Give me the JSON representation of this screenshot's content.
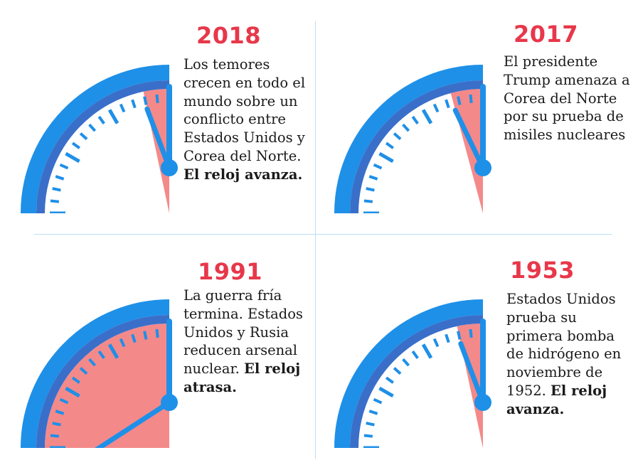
{
  "panels": [
    {
      "id": "p2018",
      "year": "2018",
      "text": "Los temores crecen en todo el mundo sobre un conflicto entre Estados Unidos y Corea del Norte. ",
      "bold": "El reloj avanza.",
      "minutes_to_midnight": 2
    },
    {
      "id": "p2017",
      "year": "2017",
      "text": "El presidente Trump amenaza a Corea del Norte por su prueba de misiles nucleares",
      "bold": "",
      "minutes_to_midnight": 2.5
    },
    {
      "id": "p1991",
      "year": "1991",
      "text": "La guerra fría termina. Estados Unidos y Rusia reducen arsenal nuclear. ",
      "bold": "El reloj atrasa.",
      "minutes_to_midnight": 17
    },
    {
      "id": "p1953",
      "year": "1953",
      "text": "Estados Unidos prueba su primera bomba de hidrógeno en noviembre de 1952. ",
      "bold": "El reloj avanza.",
      "minutes_to_midnight": 2
    }
  ],
  "colors": {
    "outer_ring": "#1e90e8",
    "inner_ring": "#3a6fc9",
    "tick": "#1e90e8",
    "hand": "#1e90e8",
    "danger_fill": "#f4898a",
    "year": "#e8374a"
  }
}
